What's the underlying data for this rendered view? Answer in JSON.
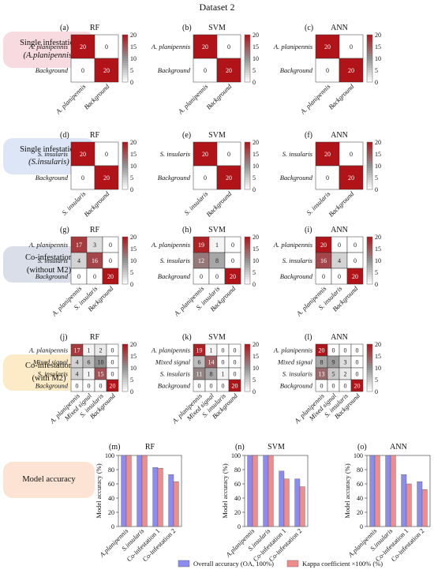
{
  "title": "Dataset 2",
  "row_labels": [
    {
      "line1": "Single infestation",
      "line2": "(A.planipennis)",
      "color": "#f8dbe0"
    },
    {
      "line1": "Single infestation",
      "line2": "(S.insularis)",
      "color": "#dce6f6"
    },
    {
      "line1": "Co-infestation",
      "line2": "(without M2)",
      "color": "#d9dee8"
    },
    {
      "line1": "Co-infestation",
      "line2": "(with M2)",
      "color": "#fcebc6"
    },
    {
      "line1": "Model accuracy",
      "line2": "",
      "color": "#fce3d4"
    }
  ],
  "colorbar": {
    "ticks": [
      "20",
      "15",
      "10",
      "5",
      "0"
    ],
    "max": 20,
    "high_color": "#b01419",
    "low_color": "#ffffff"
  },
  "chart_data": [
    {
      "type": "heatmap",
      "panel": "(a)",
      "title": "RF",
      "labels": [
        "A. planipennis",
        "Background"
      ],
      "matrix": [
        [
          20,
          0
        ],
        [
          0,
          20
        ]
      ]
    },
    {
      "type": "heatmap",
      "panel": "(b)",
      "title": "SVM",
      "labels": [
        "A. planipennis",
        "Background"
      ],
      "matrix": [
        [
          20,
          0
        ],
        [
          0,
          20
        ]
      ]
    },
    {
      "type": "heatmap",
      "panel": "(c)",
      "title": "ANN",
      "labels": [
        "A. planipennis",
        "Background"
      ],
      "matrix": [
        [
          20,
          0
        ],
        [
          0,
          20
        ]
      ]
    },
    {
      "type": "heatmap",
      "panel": "(d)",
      "title": "RF",
      "labels": [
        "S. insularis",
        "Background"
      ],
      "matrix": [
        [
          20,
          0
        ],
        [
          0,
          20
        ]
      ]
    },
    {
      "type": "heatmap",
      "panel": "(e)",
      "title": "SVM",
      "labels": [
        "S. insularis",
        "Background"
      ],
      "matrix": [
        [
          20,
          0
        ],
        [
          0,
          20
        ]
      ]
    },
    {
      "type": "heatmap",
      "panel": "(f)",
      "title": "ANN",
      "labels": [
        "S. insularis",
        "Background"
      ],
      "matrix": [
        [
          20,
          0
        ],
        [
          0,
          20
        ]
      ]
    },
    {
      "type": "heatmap",
      "panel": "(g)",
      "title": "RF",
      "labels": [
        "A. planipennis",
        "S. insularis",
        "Background"
      ],
      "matrix": [
        [
          17,
          3,
          0
        ],
        [
          4,
          16,
          0
        ],
        [
          0,
          0,
          20
        ]
      ]
    },
    {
      "type": "heatmap",
      "panel": "(h)",
      "title": "SVM",
      "labels": [
        "A. planipennis",
        "S. insularis",
        "Background"
      ],
      "matrix": [
        [
          19,
          1,
          0
        ],
        [
          12,
          8,
          0
        ],
        [
          0,
          0,
          20
        ]
      ]
    },
    {
      "type": "heatmap",
      "panel": "(i)",
      "title": "ANN",
      "labels": [
        "A. planipennis",
        "S. insularis",
        "Background"
      ],
      "matrix": [
        [
          20,
          0,
          0
        ],
        [
          16,
          4,
          0
        ],
        [
          0,
          0,
          20
        ]
      ]
    },
    {
      "type": "heatmap",
      "panel": "(j)",
      "title": "RF",
      "labels": [
        "A. planipennis",
        "Mixed signal",
        "S. insularis",
        "Background"
      ],
      "matrix": [
        [
          17,
          1,
          2,
          0
        ],
        [
          4,
          6,
          10,
          0
        ],
        [
          4,
          1,
          15,
          0
        ],
        [
          0,
          0,
          0,
          20
        ]
      ]
    },
    {
      "type": "heatmap",
      "panel": "(k)",
      "title": "SVM",
      "labels": [
        "A. planipennis",
        "Mixed signal",
        "S. insularis",
        "Background"
      ],
      "matrix": [
        [
          19,
          1,
          0,
          0
        ],
        [
          6,
          14,
          0,
          0
        ],
        [
          11,
          8,
          1,
          0
        ],
        [
          0,
          0,
          0,
          20
        ]
      ]
    },
    {
      "type": "heatmap",
      "panel": "(l)",
      "title": "ANN",
      "labels": [
        "A. planipennis",
        "Mixed signal",
        "S. insularis",
        "Background"
      ],
      "matrix": [
        [
          20,
          0,
          0,
          0
        ],
        [
          8,
          9,
          3,
          0
        ],
        [
          13,
          5,
          2,
          0
        ],
        [
          0,
          0,
          0,
          20
        ]
      ]
    },
    {
      "type": "bar",
      "panel": "(m)",
      "title": "RF",
      "categories": [
        "A.planipennis",
        "S.insularis",
        "Co-infestation 1",
        "Co-infestation 2"
      ],
      "ylabel": "Model accuracy (%)",
      "ylim": [
        0,
        100
      ],
      "yticks": [
        0,
        20,
        40,
        60,
        80,
        100
      ],
      "series": [
        {
          "name": "Overall accuracy (OA, 100%)",
          "values": [
            100,
            100,
            83,
            73
          ]
        },
        {
          "name": "Kappa coefficient ×100% (%)",
          "values": [
            100,
            100,
            82,
            63
          ]
        }
      ]
    },
    {
      "type": "bar",
      "panel": "(n)",
      "title": "SVM",
      "categories": [
        "A.planipennis",
        "S.insularis",
        "Co-infestation 1",
        "Co-infestation 2"
      ],
      "ylabel": "Model accuracy (%)",
      "ylim": [
        0,
        100
      ],
      "yticks": [
        0,
        20,
        40,
        60,
        80,
        100
      ],
      "series": [
        {
          "name": "Overall accuracy (OA, 100%)",
          "values": [
            100,
            100,
            78,
            67
          ]
        },
        {
          "name": "Kappa coefficient ×100% (%)",
          "values": [
            100,
            100,
            67,
            56
          ]
        }
      ]
    },
    {
      "type": "bar",
      "panel": "(o)",
      "title": "ANN",
      "categories": [
        "A.planipennis",
        "S.insularis",
        "Co-infestation 1",
        "Co-infestation 2"
      ],
      "ylabel": "Model accuracy (%)",
      "ylim": [
        0,
        100
      ],
      "yticks": [
        0,
        20,
        40,
        60,
        80,
        100
      ],
      "series": [
        {
          "name": "Overall accuracy (OA, 100%)",
          "values": [
            100,
            100,
            73,
            63
          ]
        },
        {
          "name": "Kappa coefficient ×100% (%)",
          "values": [
            100,
            100,
            60,
            52
          ]
        }
      ]
    }
  ],
  "legend": [
    {
      "label": "Overall accuracy (OA, 100%)",
      "color": "#8c8cf0"
    },
    {
      "label": "Kappa coefficient ×100% (%)",
      "color": "#f08c8c"
    }
  ]
}
